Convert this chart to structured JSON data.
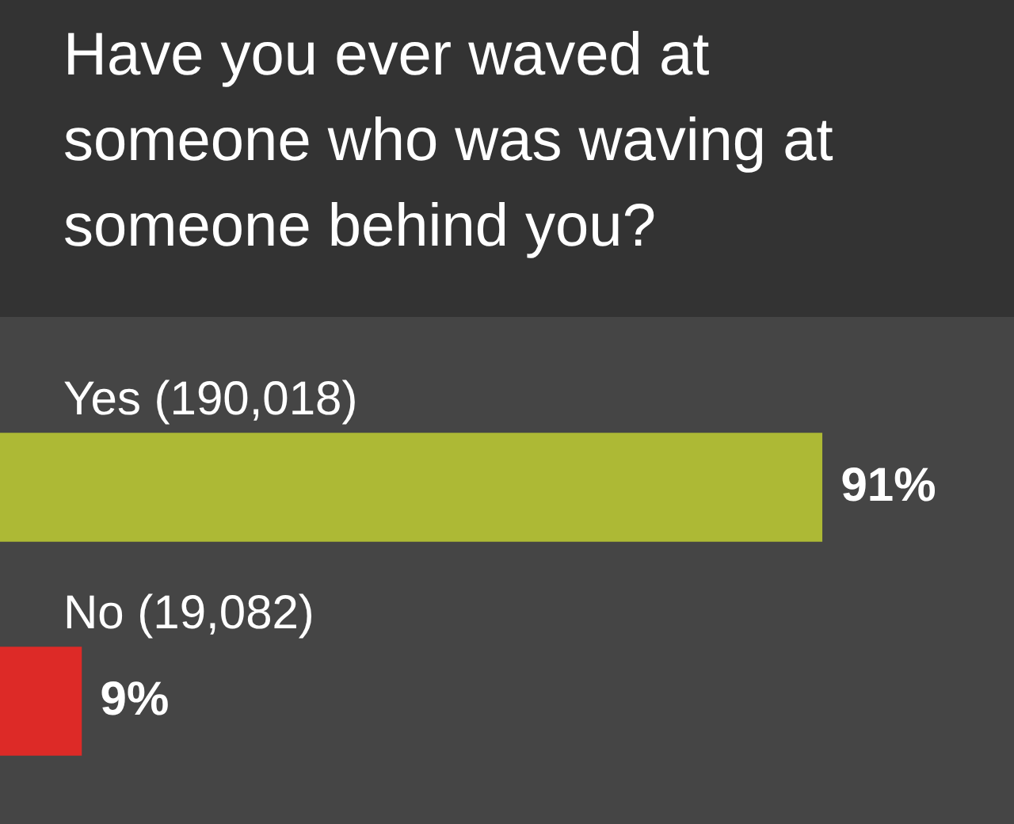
{
  "chart_data": {
    "type": "bar",
    "orientation": "horizontal",
    "title": "Have you ever waved at someone who was waving at someone behind you?",
    "categories": [
      "Yes (190,018)",
      "No (19,082)"
    ],
    "values": [
      91,
      9
    ],
    "colors": [
      "#adb935",
      "#dd2a27"
    ],
    "value_labels": [
      "91%",
      "9%"
    ],
    "tick_labels": false,
    "legend": false
  }
}
